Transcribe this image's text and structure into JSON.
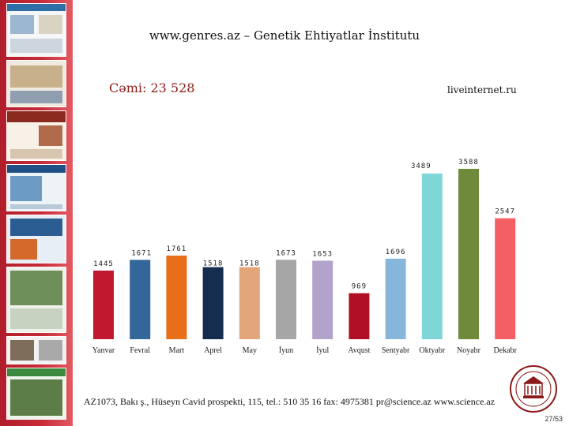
{
  "header": {
    "title": "www.genres.az – Genetik Ehtiyatlar İnstitutu",
    "total": "Cəmi: 23 528",
    "source": "liveinternet.ru"
  },
  "chart_data": {
    "type": "bar",
    "title": "www.genres.az – Genetik Ehtiyatlar İnstitutu",
    "categories": [
      "Yanvar",
      "Fevral",
      "Mart",
      "Aprel",
      "May",
      "İyun",
      "İyul",
      "Avqust",
      "Sentyabr",
      "Oktyabr",
      "Noyabr",
      "Dekabr"
    ],
    "values": [
      1445,
      1671,
      1761,
      1518,
      1518,
      1673,
      1653,
      969,
      1696,
      3489,
      3588,
      2547
    ],
    "labels": [
      "1445",
      "1671",
      "1761",
      "1518",
      "1518",
      "1673",
      "1653",
      "969",
      "1696",
      "3489",
      "3588",
      "2547"
    ],
    "colors": [
      "#c0182e",
      "#33679a",
      "#e96e1a",
      "#152d4e",
      "#e3a57a",
      "#a6a6a6",
      "#b3a2c9",
      "#b10f26",
      "#86b6dc",
      "#7fd6d6",
      "#6f8a3a",
      "#f45f63"
    ],
    "xlabel": "",
    "ylabel": "",
    "ylim": [
      0,
      3600
    ]
  },
  "footer": {
    "address": "AZ1073, Bakı ş., Hüseyn Cavid prospekti, 115, tel.: 510 35 16  fax: 4975381  pr@science.az  www.science.az",
    "page": "27/53"
  },
  "sidebar": {
    "thumbnails": [
      "website-screenshot-1",
      "website-screenshot-2",
      "website-screenshot-3",
      "website-screenshot-4",
      "website-screenshot-5",
      "website-screenshot-6",
      "website-screenshot-7",
      "website-screenshot-8"
    ]
  },
  "logo_icon": "academy-seal-icon"
}
